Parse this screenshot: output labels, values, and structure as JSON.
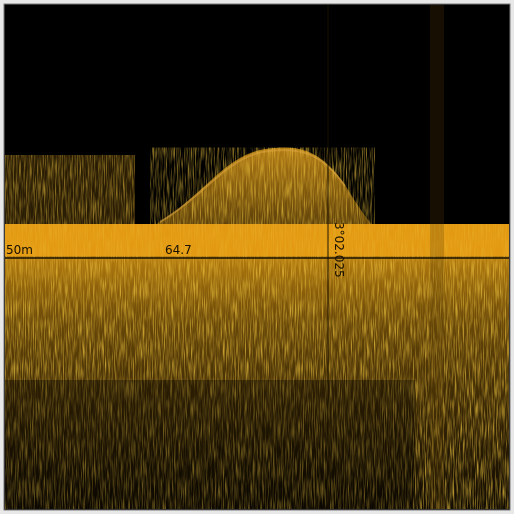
{
  "overlay": {
    "depth_label": "50m",
    "value_label": "64.7",
    "coordinate": "3°02.025"
  }
}
